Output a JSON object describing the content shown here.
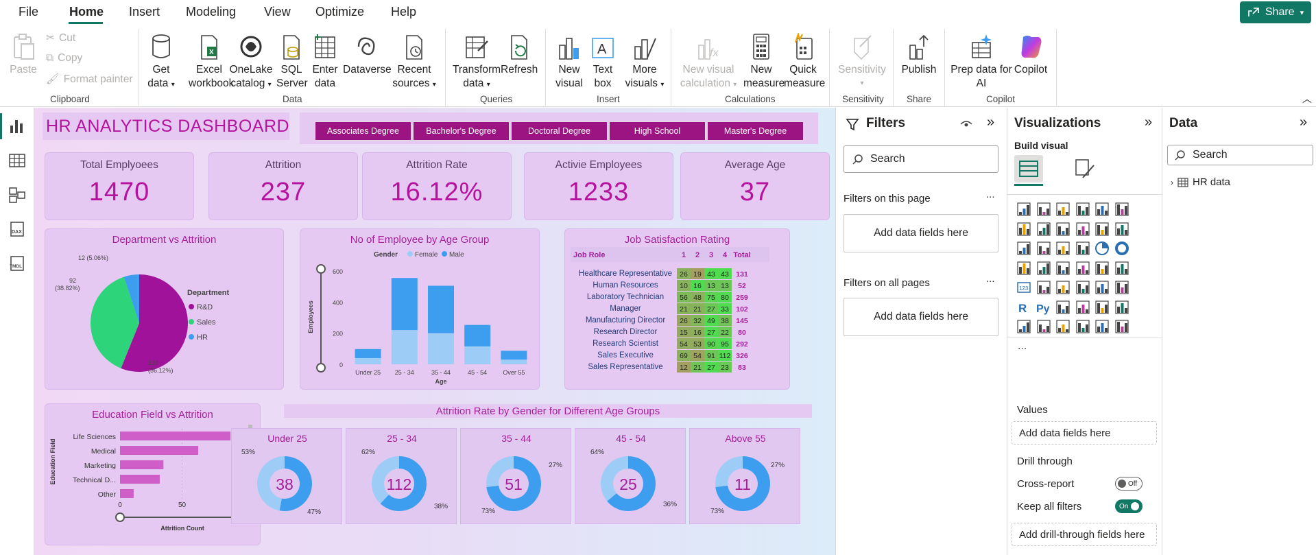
{
  "menu": {
    "items": [
      "File",
      "Home",
      "Insert",
      "Modeling",
      "View",
      "Optimize",
      "Help"
    ],
    "share": "Share"
  },
  "ribbon": {
    "clipboard": {
      "paste": "Paste",
      "cut": "Cut",
      "copy": "Copy",
      "format_painter": "Format painter",
      "label": "Clipboard"
    },
    "data": {
      "get_data": [
        "Get",
        "data"
      ],
      "excel": [
        "Excel",
        "workbook"
      ],
      "onelake": [
        "OneLake",
        "catalog"
      ],
      "sql": [
        "SQL",
        "Server"
      ],
      "enter": [
        "Enter",
        "data"
      ],
      "dataverse": "Dataverse",
      "recent": [
        "Recent",
        "sources"
      ],
      "label": "Data"
    },
    "queries": {
      "transform": [
        "Transform",
        "data"
      ],
      "refresh": "Refresh",
      "label": "Queries"
    },
    "insert": {
      "new_visual": [
        "New",
        "visual"
      ],
      "text_box": [
        "Text",
        "box"
      ],
      "more": [
        "More",
        "visuals"
      ],
      "label": "Insert"
    },
    "calculations": {
      "new_calc": [
        "New visual",
        "calculation"
      ],
      "new_measure": [
        "New",
        "measure"
      ],
      "quick_measure": [
        "Quick",
        "measure"
      ],
      "label": "Calculations"
    },
    "sensitivity": {
      "btn": "Sensitivity",
      "label": "Sensitivity"
    },
    "share": {
      "publish": "Publish",
      "label": "Share"
    },
    "copilot": {
      "prep": [
        "Prep data for",
        "AI"
      ],
      "copilot": "Copilot",
      "label": "Copilot"
    }
  },
  "dashboard": {
    "title": "HR ANALYTICS DASHBOARD",
    "slicer": [
      "Associates Degree",
      "Bachelor's Degree",
      "Doctoral Degree",
      "High School",
      "Master's Degree"
    ],
    "kpis": [
      {
        "label": "Total Emplyoees",
        "value": "1470"
      },
      {
        "label": "Attrition",
        "value": "237"
      },
      {
        "label": "Attrition Rate",
        "value": "16.12%"
      },
      {
        "label": "Activie Employees",
        "value": "1233"
      },
      {
        "label": "Average Age",
        "value": "37"
      }
    ],
    "dept_title": "Department vs Attrition",
    "age_title": "No of Employee by Age Group",
    "job_title": "Job Satisfaction Rating",
    "edu_title": "Education Field vs Attrition",
    "gender_title": "Attrition Rate by Gender for Different Age Groups"
  },
  "chart_data": [
    {
      "type": "pie",
      "title": "Department vs Attrition",
      "legend_title": "Department",
      "categories": [
        "R&D",
        "Sales",
        "HR"
      ],
      "values": [
        133,
        92,
        12
      ],
      "labels": [
        "133 (56.12%)",
        "92 (38.82%)",
        "12 (5.06%)"
      ],
      "colors": [
        "#a0129a",
        "#2ed47a",
        "#3d9ef0"
      ],
      "legend_placement": "right"
    },
    {
      "type": "bar",
      "title": "No of Employee by Age Group",
      "stacked": true,
      "legend_title": "Gender",
      "categories": [
        "Under 25",
        "25 - 34",
        "35 - 44",
        "45 - 54",
        "Over 55"
      ],
      "series": [
        {
          "name": "Female",
          "values": [
            40,
            220,
            200,
            115,
            30
          ],
          "color": "#9dcdf7"
        },
        {
          "name": "Male",
          "values": [
            58,
            335,
            305,
            138,
            57
          ],
          "color": "#3d9ef0"
        }
      ],
      "xlabel": "Age",
      "ylabel": "Employees",
      "ylim": [
        0,
        600
      ],
      "yticks": [
        "0",
        "200",
        "400",
        "600"
      ]
    },
    {
      "type": "table",
      "title": "Job Satisfaction Rating",
      "columns": [
        "Job Role",
        "1",
        "2",
        "3",
        "4",
        "Total"
      ],
      "rows": [
        [
          "Healthcare Representative",
          "26",
          "19",
          "43",
          "43",
          "131"
        ],
        [
          "Human Resources",
          "10",
          "16",
          "13",
          "13",
          "52"
        ],
        [
          "Laboratory Technician",
          "56",
          "48",
          "75",
          "80",
          "259"
        ],
        [
          "Manager",
          "21",
          "21",
          "27",
          "33",
          "102"
        ],
        [
          "Manufacturing Director",
          "26",
          "32",
          "49",
          "38",
          "145"
        ],
        [
          "Research Director",
          "15",
          "16",
          "27",
          "22",
          "80"
        ],
        [
          "Research Scientist",
          "54",
          "53",
          "90",
          "95",
          "292"
        ],
        [
          "Sales Executive",
          "69",
          "54",
          "91",
          "112",
          "326"
        ],
        [
          "Sales Representative",
          "12",
          "21",
          "27",
          "23",
          "83"
        ]
      ]
    },
    {
      "type": "bar",
      "orientation": "horizontal",
      "title": "Education Field vs Attrition",
      "categories": [
        "Life Sciences",
        "Medical",
        "Marketing",
        "Technical D...",
        "Other"
      ],
      "values": [
        89,
        63,
        35,
        32,
        11
      ],
      "xlabel": "Attrition Count",
      "ylabel": "Education Field",
      "xlim": [
        0,
        100
      ],
      "xticks": [
        "0",
        "50",
        "100"
      ],
      "color": "#cf5ec8"
    },
    {
      "type": "pie",
      "donut": true,
      "title": "Attrition Rate by Gender for Different Age Groups",
      "groups": [
        {
          "name": "Under 25",
          "total": "38",
          "series": [
            {
              "label": "53%",
              "value": 53
            },
            {
              "label": "47%",
              "value": 47
            }
          ]
        },
        {
          "name": "25 - 34",
          "total": "112",
          "series": [
            {
              "label": "62%",
              "value": 62
            },
            {
              "label": "38%",
              "value": 38
            }
          ]
        },
        {
          "name": "35 - 44",
          "total": "51",
          "series": [
            {
              "label": "73%",
              "value": 73
            },
            {
              "label": "27%",
              "value": 27
            }
          ]
        },
        {
          "name": "45 - 54",
          "total": "25",
          "series": [
            {
              "label": "64%",
              "value": 64
            },
            {
              "label": "36%",
              "value": 36
            }
          ]
        },
        {
          "name": "Above 55",
          "total": "11",
          "series": [
            {
              "label": "73%",
              "value": 73
            },
            {
              "label": "27%",
              "value": 27
            }
          ]
        }
      ],
      "colors": [
        "#3d9ef0",
        "#9dcdf7"
      ]
    }
  ],
  "filters": {
    "title": "Filters",
    "search": "Search",
    "on_page": "Filters on this page",
    "on_all": "Filters on all pages",
    "add": "Add data fields here",
    "more": "..."
  },
  "viz": {
    "title": "Visualizations",
    "build": "Build visual",
    "values": "Values",
    "add_values": "Add data fields here",
    "drill": "Drill through",
    "cross": "Cross-report",
    "cross_state": "Off",
    "keep": "Keep all filters",
    "keep_state": "On",
    "add_drill": "Add drill-through fields here",
    "more": "..."
  },
  "data": {
    "title": "Data",
    "search": "Search",
    "table": "HR data"
  },
  "colors": {
    "accent": "#117865",
    "slicer": "#9b1482",
    "kpi_value": "#b5139e",
    "title": "#a41f98"
  }
}
